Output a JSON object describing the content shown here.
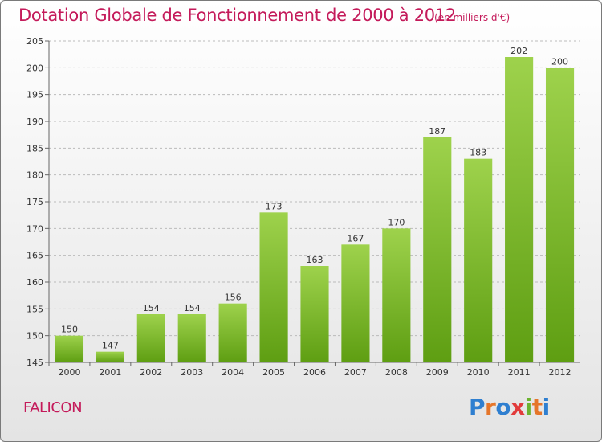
{
  "title": "Dotation Globale de Fonctionnement de 2000 à 2012",
  "subtitle": "(en milliers d'€)",
  "commune": "FALICON",
  "logo": {
    "letters": [
      "P",
      "r",
      "o",
      "x",
      "i",
      "t",
      "i"
    ],
    "colors": [
      "#2f7fd0",
      "#e5762a",
      "#2f7fd0",
      "#e23b3b",
      "#6cb32f",
      "#e5762a",
      "#2f7fd0"
    ]
  },
  "colors": {
    "bar_light": "#9ed24c",
    "bar_dark": "#5e9e12",
    "grid": "#bbbbbb",
    "title": "#c41a5a"
  },
  "chart_data": {
    "type": "bar",
    "categories": [
      "2000",
      "2001",
      "2002",
      "2003",
      "2004",
      "2005",
      "2006",
      "2007",
      "2008",
      "2009",
      "2010",
      "2011",
      "2012"
    ],
    "values": [
      150,
      147,
      154,
      154,
      156,
      173,
      163,
      167,
      170,
      187,
      183,
      202,
      200
    ],
    "ylim": [
      145,
      205
    ],
    "yticks": [
      145,
      150,
      155,
      160,
      165,
      170,
      175,
      180,
      185,
      190,
      195,
      200,
      205
    ],
    "grid": true,
    "legend": "none"
  }
}
